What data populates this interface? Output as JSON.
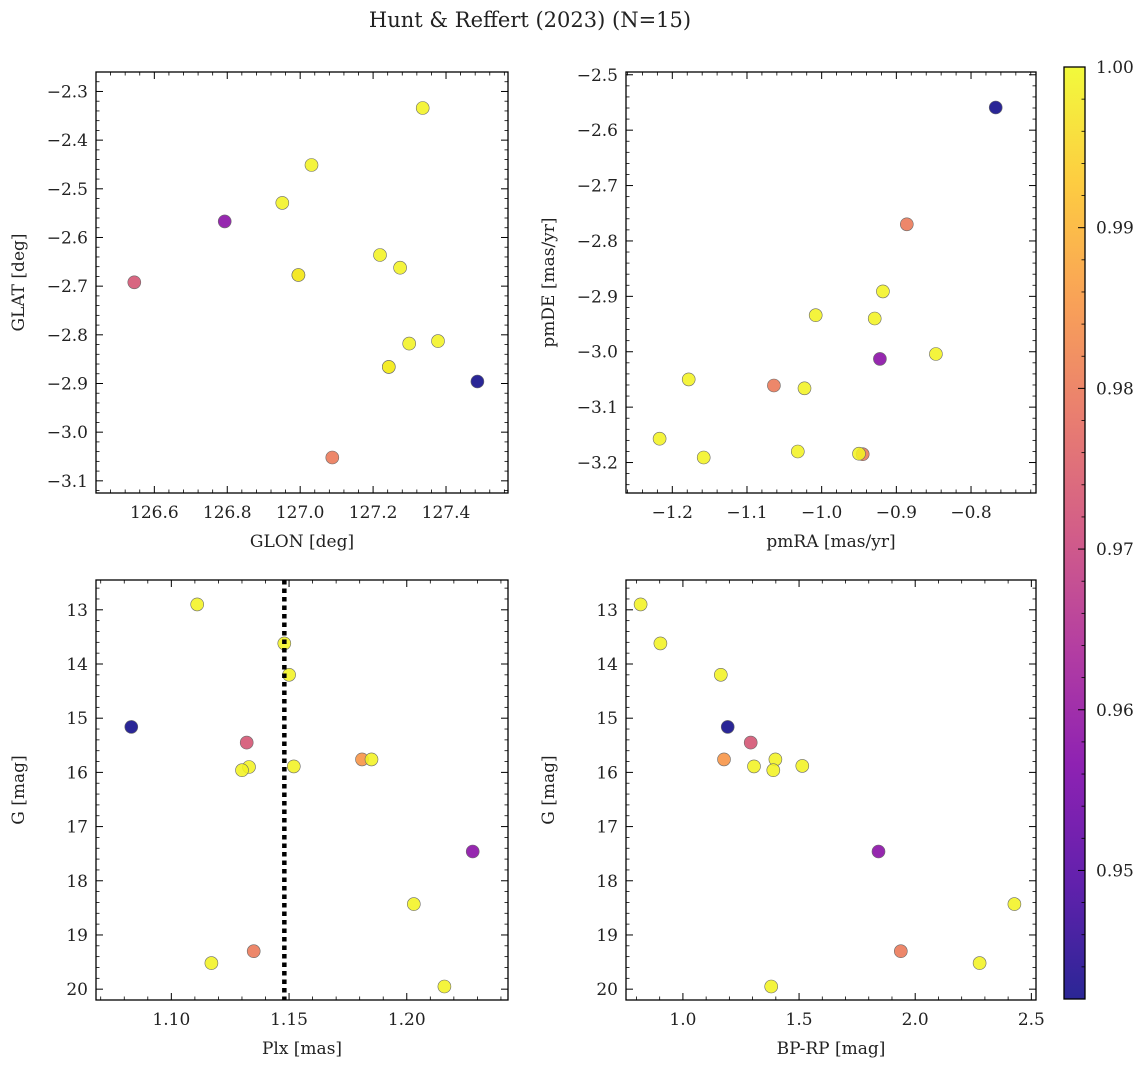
{
  "chart_data": {
    "title": "Hunt & Reffert (2023) (N=15)",
    "colorbar": {
      "range": [
        0.942,
        1.0
      ],
      "ticks": [
        0.95,
        0.96,
        0.97,
        0.98,
        0.99,
        1.0
      ],
      "tick_labels": [
        "0.95",
        "0.96",
        "0.97",
        "0.98",
        "0.99",
        "1.00"
      ],
      "colormap": "plasma"
    },
    "panels": [
      {
        "type": "scatter",
        "xlabel": "GLON [deg]",
        "ylabel": "GLAT [deg]",
        "xlim": [
          126.44,
          127.57
        ],
        "ylim": [
          -3.125,
          -2.26
        ],
        "y_inverted": false,
        "xticks": [
          126.6,
          126.8,
          127.0,
          127.2,
          127.4
        ],
        "xtick_labels": [
          "126.6",
          "126.8",
          "127.0",
          "127.2",
          "127.4"
        ],
        "yticks": [
          -3.1,
          -3.0,
          -2.9,
          -2.8,
          -2.7,
          -2.6,
          -2.5,
          -2.4,
          -2.3
        ],
        "ytick_labels": [
          "−3.1",
          "−3.0",
          "−2.9",
          "−2.8",
          "−2.7",
          "−2.6",
          "−2.5",
          "−2.4",
          "−2.3"
        ],
        "vline": null,
        "points": [
          {
            "x": 127.336,
            "y": -2.334,
            "c": 0.999
          },
          {
            "x": 127.031,
            "y": -2.451,
            "c": 0.999
          },
          {
            "x": 126.951,
            "y": -2.529,
            "c": 0.999
          },
          {
            "x": 126.793,
            "y": -2.567,
            "c": 0.958
          },
          {
            "x": 127.219,
            "y": -2.636,
            "c": 0.999
          },
          {
            "x": 127.274,
            "y": -2.662,
            "c": 0.999
          },
          {
            "x": 126.995,
            "y": -2.677,
            "c": 0.985
          },
          {
            "x": 126.995,
            "y": -2.677,
            "c": 0.999
          },
          {
            "x": 126.545,
            "y": -2.692,
            "c": 0.973
          },
          {
            "x": 127.378,
            "y": -2.813,
            "c": 0.999
          },
          {
            "x": 127.299,
            "y": -2.818,
            "c": 0.999
          },
          {
            "x": 127.243,
            "y": -2.866,
            "c": 0.99
          },
          {
            "x": 127.243,
            "y": -2.866,
            "c": 0.999
          },
          {
            "x": 127.486,
            "y": -2.896,
            "c": 0.942
          },
          {
            "x": 127.088,
            "y": -3.052,
            "c": 0.98
          }
        ]
      },
      {
        "type": "scatter",
        "xlabel": "pmRA [mas/yr]",
        "ylabel": "pmDE [mas/yr]",
        "xlim": [
          -1.262,
          -0.713
        ],
        "ylim": [
          -3.255,
          -2.495
        ],
        "y_inverted": false,
        "xticks": [
          -1.2,
          -1.1,
          -1.0,
          -0.9,
          -0.8
        ],
        "xtick_labels": [
          "−1.2",
          "−1.1",
          "−1.0",
          "−0.9",
          "−0.8"
        ],
        "yticks": [
          -3.2,
          -3.1,
          -3.0,
          -2.9,
          -2.8,
          -2.7,
          -2.6,
          -2.5
        ],
        "ytick_labels": [
          "−3.2",
          "−3.1",
          "−3.0",
          "−2.9",
          "−2.8",
          "−2.7",
          "−2.6",
          "−2.5"
        ],
        "vline": null,
        "points": [
          {
            "x": -0.767,
            "y": -2.559,
            "c": 0.942
          },
          {
            "x": -0.886,
            "y": -2.77,
            "c": 0.98
          },
          {
            "x": -0.918,
            "y": -2.891,
            "c": 0.999
          },
          {
            "x": -1.008,
            "y": -2.934,
            "c": 0.999
          },
          {
            "x": -0.929,
            "y": -2.94,
            "c": 0.999
          },
          {
            "x": -0.922,
            "y": -3.013,
            "c": 0.958
          },
          {
            "x": -0.847,
            "y": -3.004,
            "c": 0.999
          },
          {
            "x": -1.178,
            "y": -3.05,
            "c": 0.999
          },
          {
            "x": -1.064,
            "y": -3.061,
            "c": 0.98
          },
          {
            "x": -1.023,
            "y": -3.066,
            "c": 0.999
          },
          {
            "x": -1.217,
            "y": -3.157,
            "c": 0.999
          },
          {
            "x": -1.032,
            "y": -3.18,
            "c": 0.999
          },
          {
            "x": -0.945,
            "y": -3.185,
            "c": 0.98
          },
          {
            "x": -0.95,
            "y": -3.184,
            "c": 0.999
          },
          {
            "x": -1.158,
            "y": -3.191,
            "c": 0.999
          }
        ]
      },
      {
        "type": "scatter",
        "xlabel": "Plx [mas]",
        "ylabel": "G [mag]",
        "xlim": [
          1.068,
          1.243
        ],
        "ylim": [
          12.45,
          20.2
        ],
        "y_inverted": true,
        "xticks": [
          1.1,
          1.15,
          1.2
        ],
        "xtick_labels": [
          "1.10",
          "1.15",
          "1.20"
        ],
        "yticks": [
          13,
          14,
          15,
          16,
          17,
          18,
          19,
          20
        ],
        "ytick_labels": [
          "13",
          "14",
          "15",
          "16",
          "17",
          "18",
          "19",
          "20"
        ],
        "vline": 1.148,
        "points": [
          {
            "x": 1.111,
            "y": 12.9,
            "c": 0.999
          },
          {
            "x": 1.148,
            "y": 13.62,
            "c": 0.999
          },
          {
            "x": 1.15,
            "y": 14.2,
            "c": 0.999
          },
          {
            "x": 1.083,
            "y": 15.16,
            "c": 0.942
          },
          {
            "x": 1.132,
            "y": 15.45,
            "c": 0.973
          },
          {
            "x": 1.181,
            "y": 15.76,
            "c": 0.985
          },
          {
            "x": 1.185,
            "y": 15.76,
            "c": 0.999
          },
          {
            "x": 1.152,
            "y": 15.89,
            "c": 0.999
          },
          {
            "x": 1.133,
            "y": 15.9,
            "c": 0.999
          },
          {
            "x": 1.13,
            "y": 15.96,
            "c": 0.999
          },
          {
            "x": 1.228,
            "y": 17.46,
            "c": 0.958
          },
          {
            "x": 1.203,
            "y": 18.43,
            "c": 0.999
          },
          {
            "x": 1.135,
            "y": 19.3,
            "c": 0.98
          },
          {
            "x": 1.117,
            "y": 19.52,
            "c": 0.999
          },
          {
            "x": 1.216,
            "y": 19.95,
            "c": 0.999
          }
        ]
      },
      {
        "type": "scatter",
        "xlabel": "BP-RP [mag]",
        "ylabel": "G [mag]",
        "xlim": [
          0.755,
          2.52
        ],
        "ylim": [
          12.45,
          20.2
        ],
        "y_inverted": true,
        "xticks": [
          1.0,
          1.5,
          2.0,
          2.5
        ],
        "xtick_labels": [
          "1.0",
          "1.5",
          "2.0",
          "2.5"
        ],
        "yticks": [
          13,
          14,
          15,
          16,
          17,
          18,
          19,
          20
        ],
        "ytick_labels": [
          "13",
          "14",
          "15",
          "16",
          "17",
          "18",
          "19",
          "20"
        ],
        "vline": null,
        "points": [
          {
            "x": 0.818,
            "y": 12.9,
            "c": 0.999
          },
          {
            "x": 0.903,
            "y": 13.62,
            "c": 0.999
          },
          {
            "x": 1.163,
            "y": 14.2,
            "c": 0.999
          },
          {
            "x": 1.193,
            "y": 15.16,
            "c": 0.942
          },
          {
            "x": 1.292,
            "y": 15.45,
            "c": 0.973
          },
          {
            "x": 1.177,
            "y": 15.76,
            "c": 0.985
          },
          {
            "x": 1.398,
            "y": 15.76,
            "c": 0.999
          },
          {
            "x": 1.306,
            "y": 15.89,
            "c": 0.999
          },
          {
            "x": 1.514,
            "y": 15.88,
            "c": 0.999
          },
          {
            "x": 1.389,
            "y": 15.96,
            "c": 0.999
          },
          {
            "x": 1.842,
            "y": 17.46,
            "c": 0.958
          },
          {
            "x": 2.427,
            "y": 18.43,
            "c": 0.999
          },
          {
            "x": 1.938,
            "y": 19.3,
            "c": 0.98
          },
          {
            "x": 2.277,
            "y": 19.52,
            "c": 0.999
          },
          {
            "x": 1.38,
            "y": 19.95,
            "c": 0.999
          }
        ]
      }
    ]
  }
}
